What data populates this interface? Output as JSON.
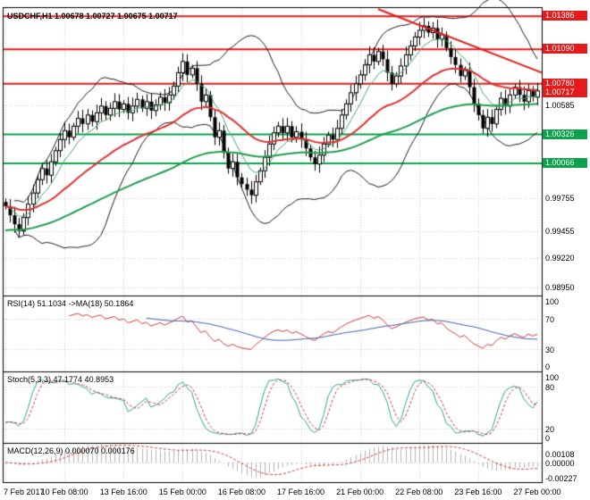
{
  "header": {
    "line": "USDCHF,H1 1.00678 1.00727 1.00675 1.00717"
  },
  "colors": {
    "background": "#ffffff",
    "border": "#000000",
    "grid": "#c9c9c9",
    "candle": "#000000",
    "candle_bull_fill": "#ffffff",
    "bollinger": "#1c1c1c",
    "ma_red": "#e03232",
    "ma_green_fast": "#44a868",
    "ma_green_slow": "#1f9e4e",
    "resistance": "#e51b1b",
    "support": "#0aa24a",
    "trendline": "#e51b1b",
    "rsi_line": "#cf3a3a",
    "rsi_ma": "#3c5ea6",
    "stoch_k": "#26a69a",
    "stoch_d": "#cf3a3a",
    "macd_hist": "#b5b5b5",
    "macd_signal": "#cf3a3a",
    "text": "#000000"
  },
  "chart_data": {
    "type": "candlestick",
    "title": "USDCHF,H1",
    "quote": {
      "open": "1.00678",
      "high": "1.00727",
      "low": "1.00675",
      "close": "1.00717"
    },
    "x_labels": [
      "7 Feb 2017",
      "10 Feb 08:00",
      "13 Feb 16:00",
      "15 Feb 00:00",
      "16 Feb 08:00",
      "17 Feb 16:00",
      "21 Feb 00:00",
      "22 Feb 08:00",
      "23 Feb 16:00",
      "27 Feb 00:00"
    ],
    "y_axis": {
      "min": 0.9888,
      "max": 1.0146,
      "plain_ticks": [
        {
          "v": 1.00585,
          "label": "1.00585"
        },
        {
          "v": 0.99755,
          "label": "0.99755"
        },
        {
          "v": 0.99455,
          "label": "0.99455"
        },
        {
          "v": 0.9922,
          "label": "0.99220"
        },
        {
          "v": 0.9895,
          "label": "0.98950"
        }
      ]
    },
    "first_open": 0.9972,
    "wick": {
      "base": 0.0004,
      "var": 0.0007
    },
    "closes": [
      0.9968,
      0.996,
      0.9952,
      0.9946,
      0.9958,
      0.997,
      0.998,
      0.9992,
      1.0002,
      0.9996,
      1.0008,
      1.0018,
      1.0028,
      1.0036,
      1.003,
      1.004,
      1.0047,
      1.0042,
      1.005,
      1.0044,
      1.0052,
      1.0058,
      1.005,
      1.0056,
      1.0062,
      1.0055,
      1.006,
      1.0052,
      1.0058,
      1.0064,
      1.0056,
      1.0062,
      1.0054,
      1.0059,
      1.0066,
      1.0061,
      1.0068,
      1.0076,
      1.0088,
      1.0098,
      1.0086,
      1.0092,
      1.0078,
      1.0062,
      1.0068,
      1.0048,
      1.003,
      1.0036,
      1.0016,
      1.0002,
      1.0008,
      0.9994,
      0.9988,
      0.9983,
      0.9978,
      0.999,
      1.0,
      1.0012,
      1.0024,
      1.0034,
      1.004,
      1.0034,
      1.004,
      1.003,
      1.0035,
      1.0028,
      1.002,
      1.0012,
      1.0006,
      1.0014,
      1.0024,
      1.0032,
      1.0028,
      1.0038,
      1.005,
      1.006,
      1.007,
      1.0078,
      1.0086,
      1.0095,
      1.0104,
      1.0098,
      1.0107,
      1.01,
      1.0088,
      1.0078,
      1.0085,
      1.0094,
      1.0104,
      1.0112,
      1.012,
      1.0126,
      1.013,
      1.0124,
      1.0128,
      1.0118,
      1.0122,
      1.011,
      1.0102,
      1.0095,
      1.0085,
      1.009,
      1.0075,
      1.006,
      1.005,
      1.0038,
      1.0048,
      1.0042,
      1.0055,
      1.0065,
      1.0058,
      1.0068,
      1.0075,
      1.0068,
      1.0062,
      1.0072,
      1.0066,
      1.00717
    ],
    "overlays": {
      "bollinger": {
        "period": 20,
        "deviation": 2
      },
      "ma_green_fast": {
        "period": 8
      },
      "ma_red": {
        "period": 30
      },
      "ma_green_slow": {
        "period": 80
      }
    },
    "levels": {
      "resistance": [
        {
          "v": 1.01386,
          "label": "1.01386"
        },
        {
          "v": 1.0109,
          "label": "1.01090"
        },
        {
          "v": 1.0078,
          "label": "1.00780"
        }
      ],
      "support": [
        {
          "v": 1.00326,
          "label": "1.00326"
        },
        {
          "v": 1.00066,
          "label": "1.00066"
        }
      ],
      "current": {
        "v": 1.00717,
        "label": "1.00717"
      }
    },
    "trendline": {
      "from_index": 82,
      "from_price": 1.0145,
      "to_index": 118,
      "to_price": 1.0088
    },
    "subcharts": [
      {
        "name": "rsi",
        "label": "RSI(14) 51.1034 ->MA(18) 50.1864",
        "period": 14,
        "ma_period": 18,
        "range": [
          0,
          100
        ],
        "ticks": [
          {
            "v": 100,
            "label": "100"
          },
          {
            "v": 70,
            "label": "70"
          },
          {
            "v": 30,
            "label": "30"
          },
          {
            "v": 0,
            "label": "0"
          }
        ],
        "dotted": [
          70,
          30
        ]
      },
      {
        "name": "stochastic",
        "label": "Stoch(5,3,3) 47.1774 40.8953",
        "k": 5,
        "d": 3,
        "slowing": 3,
        "range": [
          0,
          100
        ],
        "ticks": [
          {
            "v": 100,
            "label": "100"
          },
          {
            "v": 80,
            "label": "80"
          },
          {
            "v": 20,
            "label": "20"
          },
          {
            "v": 0,
            "label": "0"
          }
        ],
        "dotted": [
          80,
          20
        ]
      },
      {
        "name": "macd",
        "label": "MACD(12,26,9) 0.000070 0.000176",
        "fast": 12,
        "slow": 26,
        "signal": 9,
        "ticks": [
          {
            "v": 0.00108,
            "label": "0.00108"
          },
          {
            "v": 0,
            "label": "0.00000"
          },
          {
            "v": -0.00227,
            "label": "-0.00227"
          }
        ],
        "dotted": [
          0
        ]
      }
    ]
  }
}
